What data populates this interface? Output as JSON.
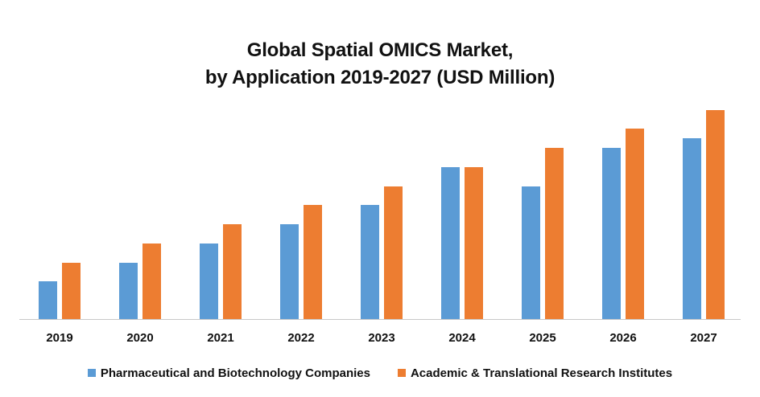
{
  "chart_data": {
    "type": "bar",
    "title": "Global Spatial OMICS Market, by Application 2019-2027 (USD Million)",
    "title_lines": [
      "Global Spatial OMICS Market,",
      "by Application 2019-2027 (USD Million)"
    ],
    "xlabel": "",
    "ylabel": "",
    "y_axis_shown": false,
    "grid": false,
    "legend_position": "bottom",
    "value_note": "No y-axis ticks shown; values are relative bar heights (pixels above baseline)",
    "categories": [
      "2019",
      "2020",
      "2021",
      "2022",
      "2023",
      "2024",
      "2025",
      "2026",
      "2027"
    ],
    "series": [
      {
        "name": "Pharmaceutical and Biotechnology Companies",
        "color": "#5B9BD5",
        "values": [
          47,
          70,
          94,
          118,
          142,
          189,
          165,
          213,
          225
        ]
      },
      {
        "name": "Academic & Translational Research Institutes",
        "color": "#ED7D31",
        "values": [
          70,
          94,
          118,
          142,
          165,
          189,
          213,
          237,
          260
        ]
      }
    ],
    "ylim": [
      0,
      297
    ]
  }
}
